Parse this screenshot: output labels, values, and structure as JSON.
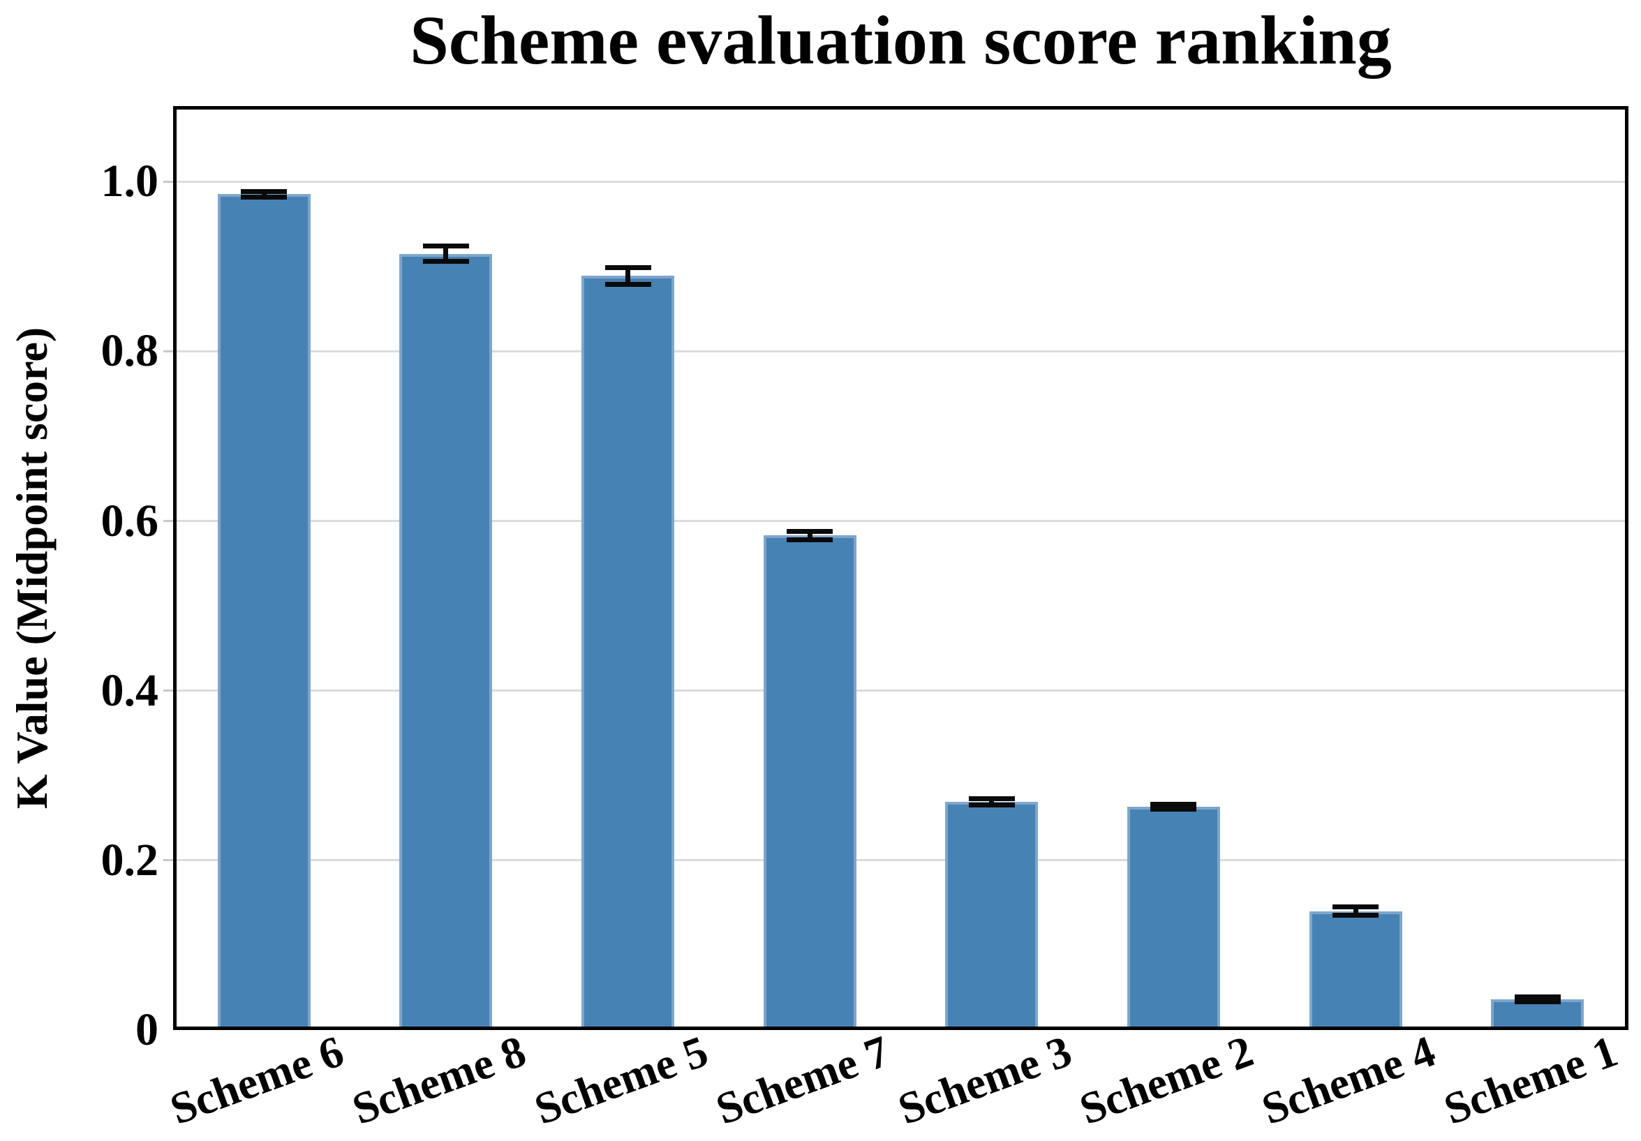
{
  "chart_data": {
    "type": "bar",
    "title": "Scheme evaluation score ranking",
    "xlabel": "",
    "ylabel": "K Value (Midpoint score)",
    "categories": [
      "Scheme 6",
      "Scheme 8",
      "Scheme 5",
      "Scheme 7",
      "Scheme 3",
      "Scheme 2",
      "Scheme 4",
      "Scheme 1"
    ],
    "values": [
      0.985,
      0.915,
      0.889,
      0.583,
      0.269,
      0.263,
      0.14,
      0.036
    ],
    "errors": [
      0.003,
      0.009,
      0.01,
      0.005,
      0.004,
      0.003,
      0.005,
      0.003
    ],
    "ylim": [
      0,
      1.089
    ],
    "yticks": [
      0,
      0.2,
      0.4,
      0.6,
      0.8,
      1.0
    ],
    "ytick_labels": [
      "0",
      "0.2",
      "0.4",
      "0.6",
      "0.8",
      "1.0"
    ],
    "grid": true,
    "legend": "none",
    "xtick_rotation_deg": 20,
    "colors": {
      "bar_fill": "#4682B4",
      "bar_edge": "#7FA6CB",
      "error_bar": "#0a0a0a",
      "gridline": "#DBDBDB",
      "tick_nub": "#C8C8C8",
      "spine": "#000000",
      "text": "#000000"
    }
  }
}
